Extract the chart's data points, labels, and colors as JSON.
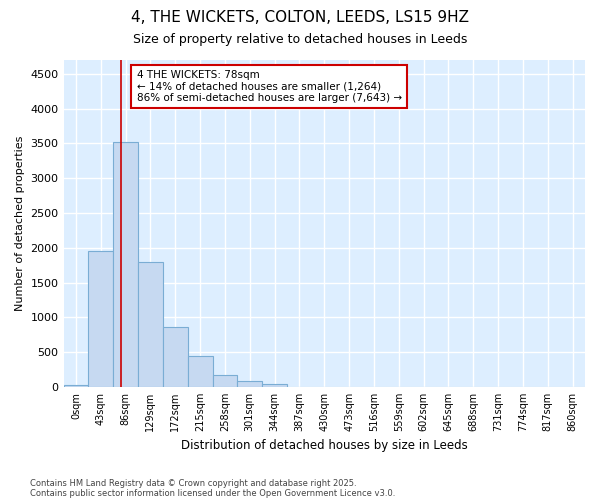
{
  "title": "4, THE WICKETS, COLTON, LEEDS, LS15 9HZ",
  "subtitle": "Size of property relative to detached houses in Leeds",
  "xlabel": "Distribution of detached houses by size in Leeds",
  "ylabel": "Number of detached properties",
  "bin_labels": [
    "0sqm",
    "43sqm",
    "86sqm",
    "129sqm",
    "172sqm",
    "215sqm",
    "258sqm",
    "301sqm",
    "344sqm",
    "387sqm",
    "430sqm",
    "473sqm",
    "516sqm",
    "559sqm",
    "602sqm",
    "645sqm",
    "688sqm",
    "731sqm",
    "774sqm",
    "817sqm",
    "860sqm"
  ],
  "bar_heights": [
    30,
    1950,
    3520,
    1800,
    860,
    450,
    175,
    90,
    35,
    0,
    0,
    0,
    0,
    0,
    0,
    0,
    0,
    0,
    0,
    0,
    0
  ],
  "bar_color": "#c6d9f1",
  "bar_edge_color": "#7aadd4",
  "property_line_x": 1.82,
  "annotation_text": "4 THE WICKETS: 78sqm\n← 14% of detached houses are smaller (1,264)\n86% of semi-detached houses are larger (7,643) →",
  "annotation_box_color": "#ffffff",
  "annotation_box_edge_color": "#cc0000",
  "ylim": [
    0,
    4700
  ],
  "yticks": [
    0,
    500,
    1000,
    1500,
    2000,
    2500,
    3000,
    3500,
    4000,
    4500
  ],
  "footer_line1": "Contains HM Land Registry data © Crown copyright and database right 2025.",
  "footer_line2": "Contains public sector information licensed under the Open Government Licence v3.0.",
  "fig_bg_color": "#ffffff",
  "plot_bg_color": "#ddeeff"
}
